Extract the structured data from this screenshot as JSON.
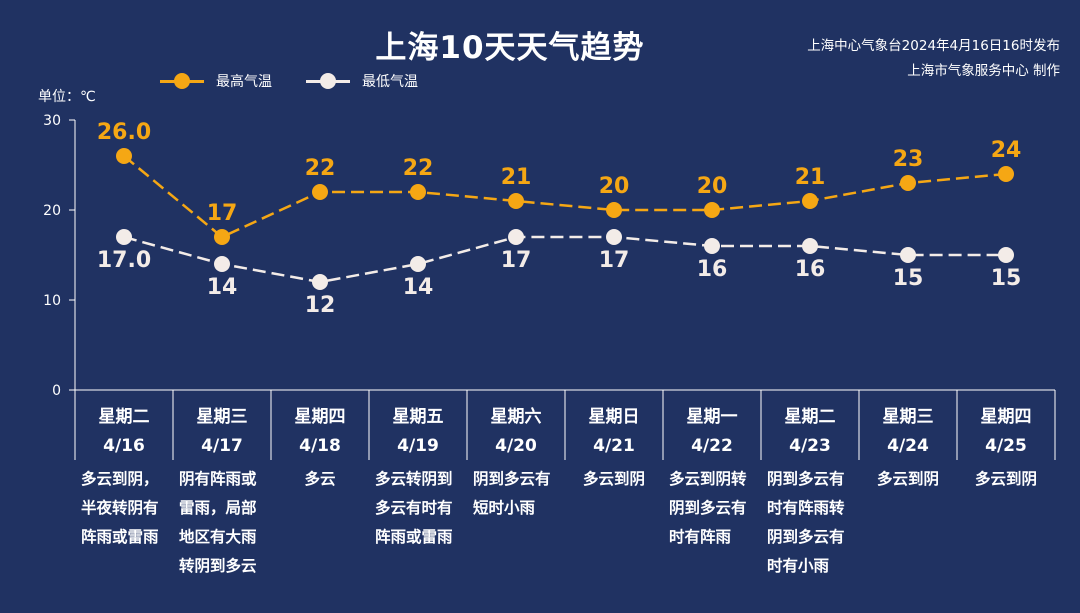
{
  "header": {
    "title": "上海10天天气趋势",
    "source_line1": "上海中心气象台2024年4月16日16时发布",
    "source_line2": "上海市气象服务中心 制作"
  },
  "unit_label": "单位：℃",
  "colors": {
    "background": "#203262",
    "high": "#f5a714",
    "low": "#f3ece8",
    "axis": "#ffffff"
  },
  "chart_data": {
    "type": "line",
    "ylim": [
      0,
      30
    ],
    "yticks": [
      0,
      10,
      20,
      30
    ],
    "grid": false,
    "legend_position": "top-left",
    "series": [
      {
        "name": "最高气温",
        "values": [
          26.0,
          17,
          22,
          22,
          21,
          20,
          20,
          21,
          23,
          24
        ],
        "labels": [
          "26.0",
          "17",
          "22",
          "22",
          "21",
          "20",
          "20",
          "21",
          "23",
          "24"
        ]
      },
      {
        "name": "最低气温",
        "values": [
          17.0,
          14,
          12,
          14,
          17,
          17,
          16,
          16,
          15,
          15
        ],
        "labels": [
          "17.0",
          "14",
          "12",
          "14",
          "17",
          "17",
          "16",
          "16",
          "15",
          "15"
        ]
      }
    ],
    "days": [
      {
        "weekday": "星期二",
        "date": "4/16",
        "weather": [
          "多云到阴，",
          "半夜转阴有",
          "阵雨或雷雨"
        ]
      },
      {
        "weekday": "星期三",
        "date": "4/17",
        "weather": [
          "阴有阵雨或",
          "雷雨，局部",
          "地区有大雨",
          "转阴到多云"
        ]
      },
      {
        "weekday": "星期四",
        "date": "4/18",
        "weather": [
          "多云"
        ]
      },
      {
        "weekday": "星期五",
        "date": "4/19",
        "weather": [
          "多云转阴到",
          "多云有时有",
          "阵雨或雷雨"
        ]
      },
      {
        "weekday": "星期六",
        "date": "4/20",
        "weather": [
          "阴到多云有",
          "短时小雨"
        ]
      },
      {
        "weekday": "星期日",
        "date": "4/21",
        "weather": [
          "多云到阴"
        ]
      },
      {
        "weekday": "星期一",
        "date": "4/22",
        "weather": [
          "多云到阴转",
          "阴到多云有",
          "时有阵雨"
        ]
      },
      {
        "weekday": "星期二",
        "date": "4/23",
        "weather": [
          "阴到多云有",
          "时有阵雨转",
          "阴到多云有",
          "时有小雨"
        ]
      },
      {
        "weekday": "星期三",
        "date": "4/24",
        "weather": [
          "多云到阴"
        ]
      },
      {
        "weekday": "星期四",
        "date": "4/25",
        "weather": [
          "多云到阴"
        ]
      }
    ]
  }
}
